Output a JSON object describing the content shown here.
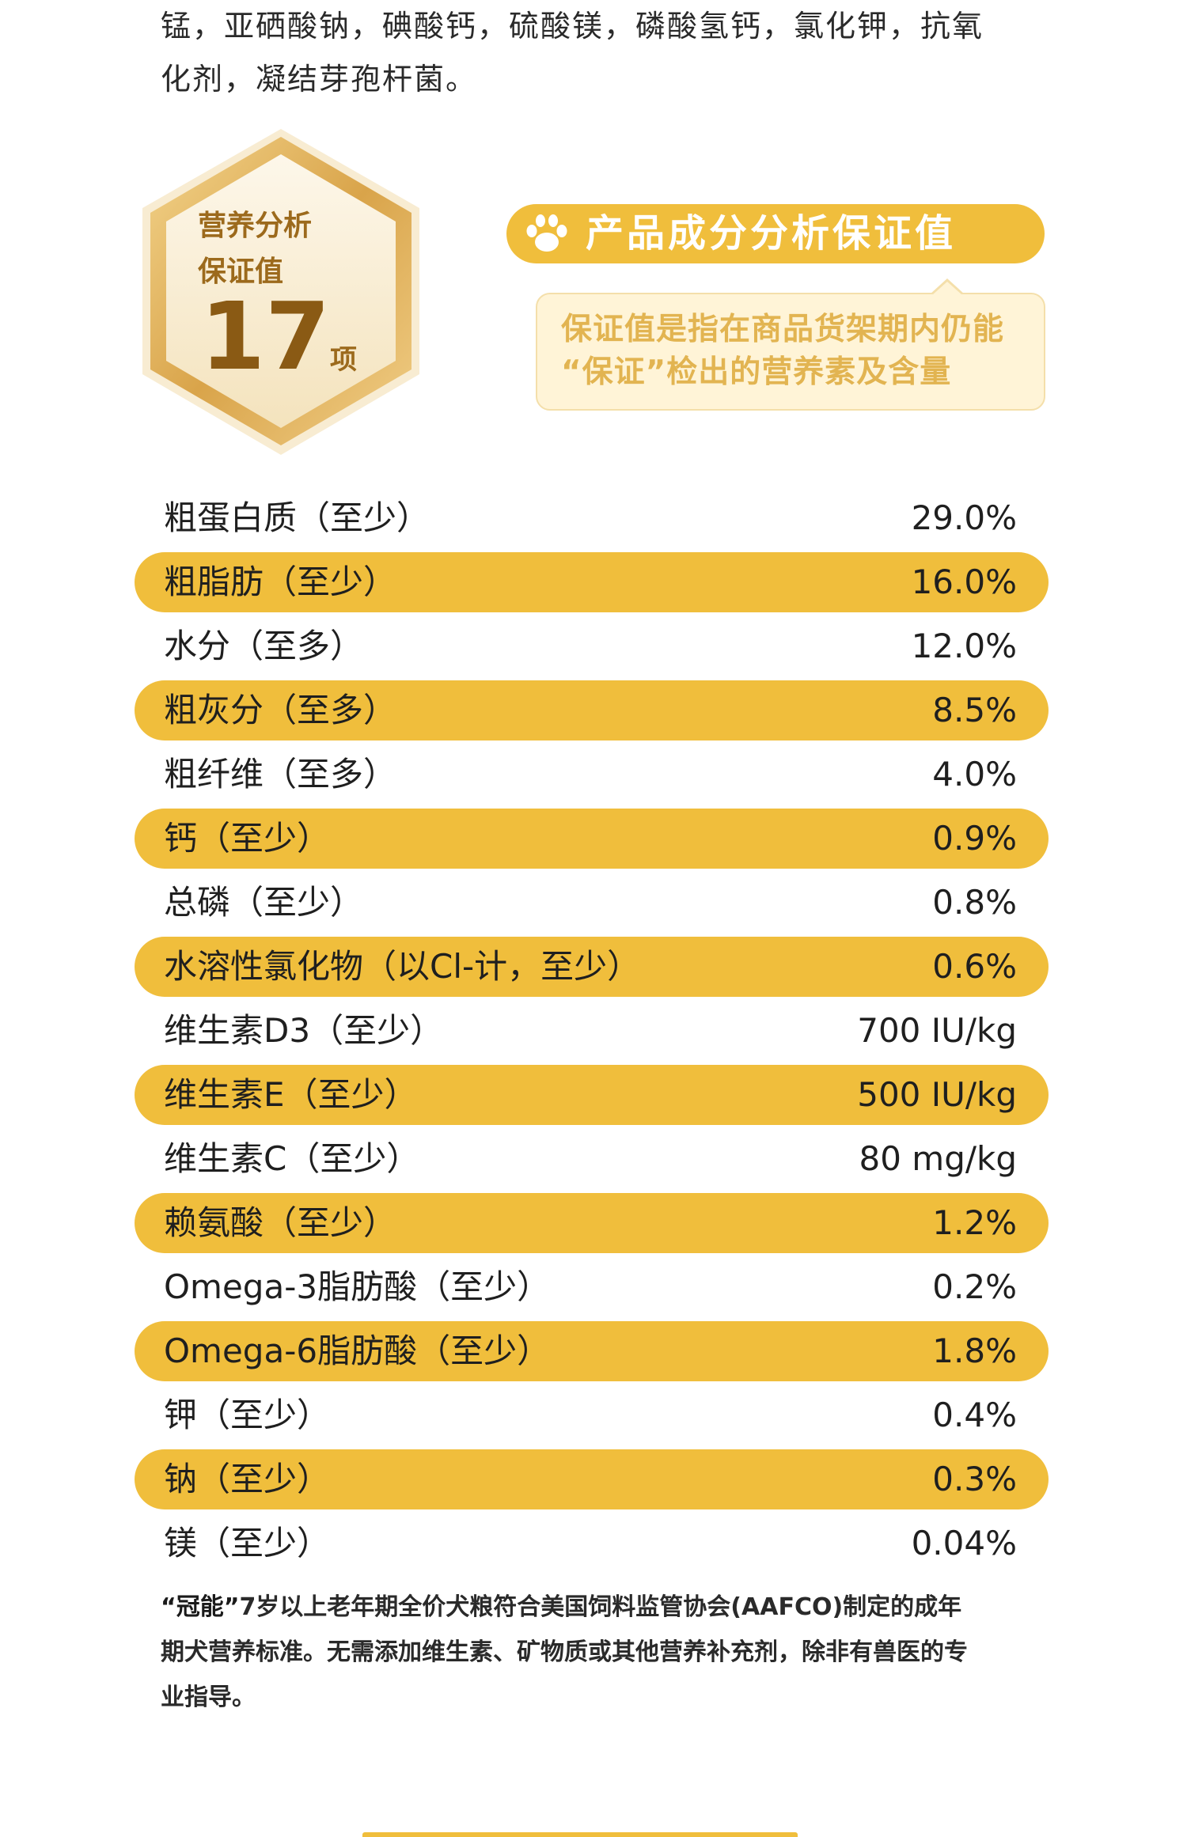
{
  "intro": {
    "line1": "锰，亚硒酸钠，碘酸钙，硫酸镁，磷酸氢钙，氯化钾，抗氧",
    "line2": "化剂，凝结芽孢杆菌。"
  },
  "badge": {
    "label_line1": "营养分析",
    "label_line2": "保证值",
    "count": "17",
    "unit": "项"
  },
  "header": {
    "icon": "paw-icon",
    "title": "产品成分分析保证值"
  },
  "callout": {
    "line1": "保证值是指在商品货架期内仍能",
    "line2": "“保证”检出的营养素及含量"
  },
  "nutrients": [
    {
      "name": "粗蛋白质（至少）",
      "value": "29.0%"
    },
    {
      "name": "粗脂肪（至少）",
      "value": "16.0%"
    },
    {
      "name": "水分（至多）",
      "value": "12.0%"
    },
    {
      "name": "粗灰分（至多）",
      "value": "8.5%"
    },
    {
      "name": "粗纤维（至多）",
      "value": "4.0%"
    },
    {
      "name": "钙（至少）",
      "value": "0.9%"
    },
    {
      "name": "总磷（至少）",
      "value": "0.8%"
    },
    {
      "name": "水溶性氯化物（以Cl-计，至少）",
      "value": "0.6%"
    },
    {
      "name": "维生素D3（至少）",
      "value": "700 IU/kg"
    },
    {
      "name": "维生素E（至少）",
      "value": "500 IU/kg"
    },
    {
      "name": "维生素C（至少）",
      "value": "80 mg/kg"
    },
    {
      "name": "赖氨酸（至少）",
      "value": "1.2%"
    },
    {
      "name": "Omega-3脂肪酸（至少）",
      "value": "0.2%"
    },
    {
      "name": "Omega-6脂肪酸（至少）",
      "value": "1.8%"
    },
    {
      "name": "钾（至少）",
      "value": "0.4%"
    },
    {
      "name": "钠（至少）",
      "value": "0.3%"
    },
    {
      "name": "镁（至少）",
      "value": "0.04%"
    }
  ],
  "footnote": {
    "brand": "“冠能”",
    "line1": "7岁以上老年期全价犬粮符合美国饲料监管协会(AAFCO)制定的成年",
    "line2": "期犬营养标准。无需添加维生素、矿物质或其他营养补充剂，除非有兽医的专",
    "line3": "业指导。"
  },
  "colors": {
    "accent": "#f0be3c",
    "callout_bg": "#fff4d7",
    "callout_text": "#e2b451",
    "badge_text": "#9c6a1c"
  }
}
